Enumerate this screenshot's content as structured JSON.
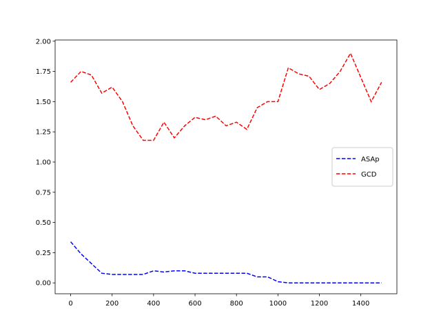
{
  "chart_data": {
    "type": "line",
    "x": [
      0,
      50,
      100,
      150,
      200,
      250,
      300,
      350,
      400,
      450,
      500,
      550,
      600,
      650,
      700,
      750,
      800,
      850,
      900,
      950,
      1000,
      1050,
      1100,
      1150,
      1200,
      1250,
      1300,
      1350,
      1400,
      1450,
      1500
    ],
    "series": [
      {
        "name": "ASAp",
        "color": "#0000ff",
        "values": [
          0.34,
          0.24,
          0.16,
          0.08,
          0.07,
          0.07,
          0.07,
          0.07,
          0.1,
          0.09,
          0.1,
          0.1,
          0.08,
          0.08,
          0.08,
          0.08,
          0.08,
          0.08,
          0.05,
          0.05,
          0.01,
          0.0,
          0.0,
          0.0,
          0.0,
          0.0,
          0.0,
          0.0,
          0.0,
          0.0,
          0.0
        ]
      },
      {
        "name": "GCD",
        "color": "#ff0000",
        "values": [
          1.66,
          1.75,
          1.72,
          1.57,
          1.62,
          1.5,
          1.3,
          1.18,
          1.18,
          1.33,
          1.2,
          1.3,
          1.37,
          1.35,
          1.38,
          1.3,
          1.33,
          1.27,
          1.45,
          1.5,
          1.5,
          1.78,
          1.73,
          1.71,
          1.6,
          1.65,
          1.75,
          1.9,
          1.7,
          1.5,
          1.66
        ]
      }
    ],
    "xlim": [
      -75,
      1574
    ],
    "ylim": [
      -0.09,
      2.01
    ],
    "xticks": [
      0,
      200,
      400,
      600,
      800,
      1000,
      1200,
      1400
    ],
    "yticks": [
      {
        "value": 0,
        "label": "0.00"
      },
      {
        "value": 0.25,
        "label": "0.25"
      },
      {
        "value": 0.5,
        "label": "0.50"
      },
      {
        "value": 0.75,
        "label": "0.75"
      },
      {
        "value": 1,
        "label": "1.00"
      },
      {
        "value": 1.25,
        "label": "1.25"
      },
      {
        "value": 1.5,
        "label": "1.50"
      },
      {
        "value": 1.75,
        "label": "1.75"
      },
      {
        "value": 2,
        "label": "2.00"
      }
    ],
    "legend": "center right"
  }
}
